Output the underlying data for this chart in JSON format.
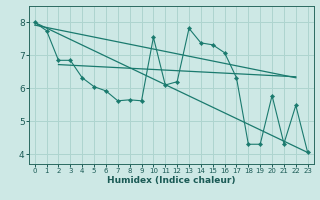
{
  "xlabel": "Humidex (Indice chaleur)",
  "xlim": [
    -0.5,
    23.5
  ],
  "ylim": [
    3.7,
    8.5
  ],
  "xticks": [
    0,
    1,
    2,
    3,
    4,
    5,
    6,
    7,
    8,
    9,
    10,
    11,
    12,
    13,
    14,
    15,
    16,
    17,
    18,
    19,
    20,
    21,
    22,
    23
  ],
  "yticks": [
    4,
    5,
    6,
    7,
    8
  ],
  "bg_color": "#cde8e5",
  "line_color": "#1a7a6e",
  "grid_color": "#aed4cf",
  "line_steep": {
    "x": [
      0,
      23
    ],
    "y": [
      8.0,
      4.05
    ]
  },
  "line_flat1": {
    "x": [
      2,
      22
    ],
    "y": [
      6.72,
      6.35
    ]
  },
  "line_flat2": {
    "x": [
      0,
      22
    ],
    "y": [
      7.92,
      6.32
    ]
  },
  "jagged_x": [
    0,
    1,
    2,
    3,
    4,
    5,
    6,
    7,
    8,
    9,
    10,
    11,
    12,
    13,
    14,
    15,
    16,
    17,
    18,
    19,
    20,
    21,
    22,
    23
  ],
  "jagged_y": [
    8.0,
    7.75,
    6.85,
    6.85,
    6.32,
    6.05,
    5.92,
    5.62,
    5.65,
    5.62,
    7.55,
    6.1,
    6.2,
    7.82,
    7.38,
    7.32,
    7.08,
    6.32,
    4.3,
    4.3,
    5.78,
    4.32,
    5.48,
    4.05
  ]
}
